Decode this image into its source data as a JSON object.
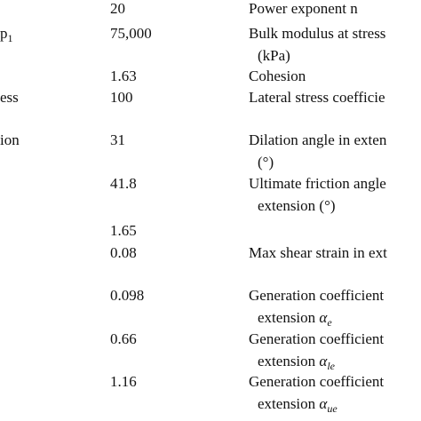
{
  "table": {
    "rows": [
      {
        "value": "20",
        "desc": "Power exponent n"
      },
      {
        "label": "p",
        "label_sub": "1",
        "value": "75,000",
        "desc": "Bulk modulus at stress",
        "desc2": "(kPa)"
      },
      {
        "value": "1.63",
        "desc": "Cohesion"
      },
      {
        "label": "ess",
        "value": "100",
        "desc": "Lateral stress coefficie"
      },
      {
        "label": "ion",
        "value": "31",
        "desc": "Dilation angle in exten",
        "desc2": "(°)"
      },
      {
        "value": "41.8",
        "desc": "Ultimate friction angle",
        "desc2": "extension (°)"
      },
      {
        "value": "1.65"
      },
      {
        "value": "0.08",
        "desc": "Max shear strain in ext"
      },
      {
        "value": "0.098",
        "desc": "Generation coefficient",
        "desc2": "extension ",
        "desc2_sym": "α",
        "desc2_sub": "e"
      },
      {
        "value": "0.66",
        "desc": "Generation coefficient",
        "desc2": "extension ",
        "desc2_sym": "α",
        "desc2_sub": "le"
      },
      {
        "value": "1.16",
        "desc": "Generation coefficient",
        "desc2": "extension ",
        "desc2_sym": "α",
        "desc2_sub": "ue"
      }
    ]
  }
}
